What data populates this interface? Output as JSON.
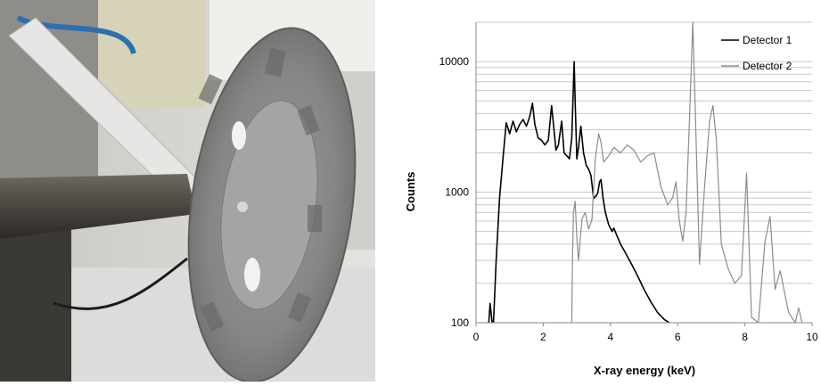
{
  "photo": {
    "subject": "x-ray fluorescence detector setup with grey sample disc"
  },
  "chart_data": {
    "type": "line",
    "title": "",
    "xlabel": "X-ray energy (keV)",
    "ylabel": "Counts",
    "yscale": "log",
    "xlim": [
      0,
      10
    ],
    "ylim": [
      100,
      20000
    ],
    "x_ticks": [
      0,
      2,
      4,
      6,
      8,
      10
    ],
    "y_ticks": [
      100,
      1000,
      10000
    ],
    "x_tick_labels": [
      "0",
      "2",
      "4",
      "6",
      "8",
      "10"
    ],
    "y_tick_labels": [
      "100",
      "1000",
      "10000"
    ],
    "legend_position": "top-right",
    "grid": "horizontal",
    "series": [
      {
        "name": "Detector 1",
        "color": "#000000",
        "x": [
          0.38,
          0.42,
          0.48,
          0.52,
          0.6,
          0.7,
          0.8,
          0.9,
          0.95,
          1.0,
          1.1,
          1.2,
          1.3,
          1.4,
          1.5,
          1.6,
          1.68,
          1.75,
          1.85,
          1.95,
          2.05,
          2.15,
          2.25,
          2.3,
          2.38,
          2.45,
          2.55,
          2.62,
          2.7,
          2.78,
          2.85,
          2.92,
          2.95,
          3.0,
          3.05,
          3.12,
          3.2,
          3.28,
          3.35,
          3.42,
          3.5,
          3.55,
          3.62,
          3.68,
          3.72,
          3.78,
          3.85,
          3.95,
          4.05,
          4.1,
          4.2,
          4.3,
          4.4,
          4.6,
          4.8,
          5.0,
          5.2,
          5.4,
          5.6,
          5.75
        ],
        "y": [
          100,
          140,
          100,
          100,
          300,
          900,
          1800,
          3400,
          3100,
          2800,
          3500,
          2900,
          3300,
          3600,
          3200,
          3800,
          4800,
          3300,
          2600,
          2500,
          2300,
          2500,
          4600,
          3400,
          2100,
          2300,
          3500,
          2000,
          1900,
          1800,
          2600,
          10000,
          5000,
          1800,
          2200,
          3200,
          2000,
          1600,
          1500,
          1350,
          900,
          920,
          980,
          1200,
          1250,
          900,
          700,
          560,
          500,
          530,
          460,
          400,
          360,
          290,
          230,
          180,
          145,
          120,
          106,
          100
        ]
      },
      {
        "name": "Detector 2",
        "color": "#8c8c8c",
        "x": [
          2.85,
          2.87,
          2.9,
          2.95,
          3.0,
          3.05,
          3.15,
          3.25,
          3.35,
          3.45,
          3.55,
          3.65,
          3.72,
          3.8,
          3.95,
          4.1,
          4.3,
          4.5,
          4.7,
          4.9,
          5.1,
          5.3,
          5.5,
          5.7,
          5.85,
          5.95,
          6.05,
          6.15,
          6.25,
          6.35,
          6.45,
          6.55,
          6.65,
          6.8,
          6.95,
          7.05,
          7.15,
          7.3,
          7.5,
          7.7,
          7.9,
          8.05,
          8.2,
          8.4,
          8.6,
          8.75,
          8.9,
          9.05,
          9.3,
          9.5,
          9.6,
          9.7
        ],
        "y": [
          100,
          300,
          700,
          850,
          450,
          300,
          620,
          700,
          520,
          620,
          1800,
          2800,
          2400,
          1700,
          1900,
          2200,
          2000,
          2300,
          2100,
          1700,
          1900,
          2000,
          1100,
          800,
          900,
          1200,
          600,
          420,
          700,
          3500,
          20000,
          2500,
          280,
          1100,
          3500,
          4600,
          2500,
          400,
          260,
          200,
          230,
          1400,
          110,
          100,
          420,
          650,
          180,
          250,
          120,
          100,
          130,
          100
        ]
      }
    ]
  }
}
